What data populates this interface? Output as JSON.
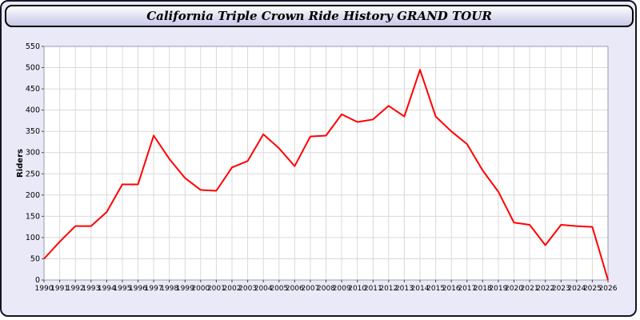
{
  "header": {
    "title": "California Triple Crown Ride History GRAND TOUR"
  },
  "chart_data": {
    "type": "line",
    "title": "California Triple Crown Ride History GRAND TOUR",
    "xlabel": "",
    "ylabel": "Riders",
    "ylim": [
      0,
      550
    ],
    "ytick_step": 50,
    "grid": true,
    "legend": "none",
    "line_color": "#ff0000",
    "plot_background": "#ffffff",
    "page_background": "#e9e9f7",
    "grid_color": "#d9d9d9",
    "x": [
      1990,
      1991,
      1992,
      1993,
      1994,
      1995,
      1996,
      1997,
      1998,
      1999,
      2000,
      2001,
      2002,
      2003,
      2004,
      2005,
      2006,
      2007,
      2008,
      2009,
      2010,
      2011,
      2012,
      2013,
      2014,
      2015,
      2016,
      2017,
      2018,
      2019,
      2020,
      2021,
      2022,
      2023,
      2024,
      2025,
      2026
    ],
    "y": [
      50,
      90,
      127,
      127,
      160,
      225,
      225,
      340,
      285,
      240,
      212,
      210,
      265,
      280,
      343,
      310,
      268,
      338,
      340,
      390,
      372,
      378,
      410,
      385,
      495,
      385,
      350,
      320,
      258,
      208,
      135,
      130,
      82,
      130,
      127,
      125,
      0
    ]
  }
}
